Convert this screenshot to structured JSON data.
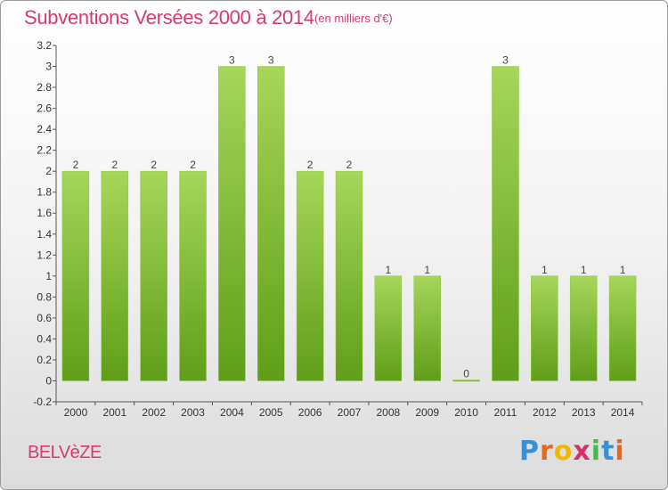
{
  "title": "Subventions Versées 2000 à 2014",
  "subtitle": "(en milliers d'€)",
  "place": "BELVèZE",
  "logo": {
    "letters": [
      "P",
      "r",
      "o",
      "x",
      "i",
      "t",
      "i"
    ],
    "colors": [
      "#3b8fd6",
      "#e8671e",
      "#f2b705",
      "#d6306a",
      "#49b84a",
      "#3b8fd6",
      "#e8671e"
    ]
  },
  "colors": {
    "bar_top": "#a6d65a",
    "bar_bottom": "#5f9e18",
    "title": "#d63a6e"
  },
  "chart_data": {
    "type": "bar",
    "title": "Subventions Versées 2000 à 2014",
    "xlabel": "",
    "ylabel": "",
    "ylim": [
      -0.2,
      3.2
    ],
    "yticks": [
      -0.2,
      0,
      0.2,
      0.4,
      0.6,
      0.8,
      1,
      1.2,
      1.4,
      1.6,
      1.8,
      2,
      2.2,
      2.4,
      2.6,
      2.8,
      3,
      3.2
    ],
    "ytick_labels": [
      "-0.2",
      "0",
      "0.2",
      "0.4",
      "0.6",
      "0.8",
      "1",
      "1.2",
      "1.4",
      "1.6",
      "1.8",
      "2",
      "2.2",
      "2.4",
      "2.6",
      "2.8",
      "3",
      "3.2"
    ],
    "categories": [
      "2000",
      "2001",
      "2002",
      "2003",
      "2004",
      "2005",
      "2006",
      "2007",
      "2008",
      "2009",
      "2010",
      "2011",
      "2012",
      "2013",
      "2014"
    ],
    "values": [
      2,
      2,
      2,
      2,
      3,
      3,
      2,
      2,
      1,
      1,
      0,
      3,
      1,
      1,
      1
    ],
    "grid": false,
    "legend": "none"
  }
}
